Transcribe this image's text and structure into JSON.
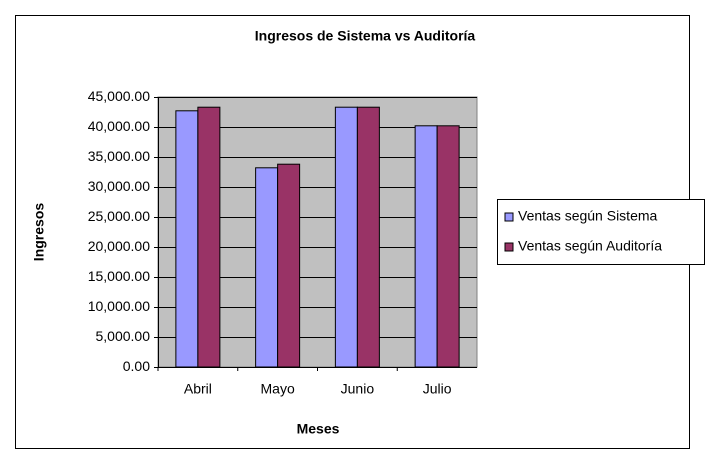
{
  "chart_data": {
    "type": "bar",
    "title": "Ingresos de Sistema vs Auditoría",
    "x_label": "Meses",
    "y_label": "Ingresos",
    "categories": [
      "Abril",
      "Mayo",
      "Junio",
      "Julio"
    ],
    "series": [
      {
        "name": "Ventas según Sistema",
        "color": "#9999ff",
        "values": [
          42700,
          33200,
          43300,
          40200
        ]
      },
      {
        "name": "Ventas según Auditoría",
        "color": "#993366",
        "values": [
          43300,
          33800,
          43300,
          40200
        ]
      }
    ],
    "ylim": [
      0,
      45000
    ],
    "yticks": [
      {
        "value": 0,
        "label": "0.00"
      },
      {
        "value": 5000,
        "label": "5,000.00"
      },
      {
        "value": 10000,
        "label": "10,000.00"
      },
      {
        "value": 15000,
        "label": "15,000.00"
      },
      {
        "value": 20000,
        "label": "20,000.00"
      },
      {
        "value": 25000,
        "label": "25,000.00"
      },
      {
        "value": 30000,
        "label": "30,000.00"
      },
      {
        "value": 35000,
        "label": "35,000.00"
      },
      {
        "value": 40000,
        "label": "40,000.00"
      },
      {
        "value": 45000,
        "label": "45,000.00"
      }
    ],
    "grid": true,
    "legend": "right",
    "plot_background": "#c0c0c0"
  }
}
